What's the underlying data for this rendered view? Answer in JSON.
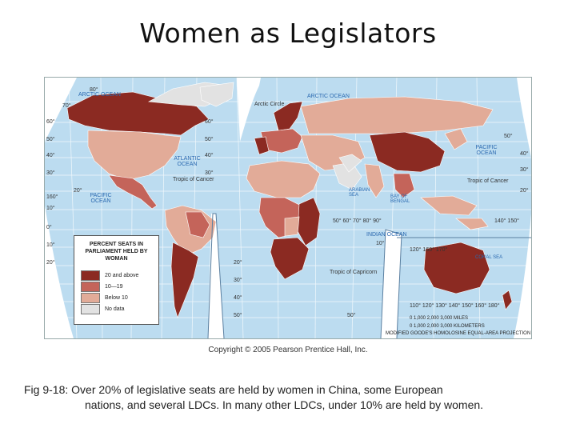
{
  "title": "Women as Legislators",
  "legend": {
    "heading": "PERCENT SEATS IN PARLIAMENT HELD BY WOMAN",
    "items": [
      {
        "label": "20 and above",
        "color": "#8b2a22"
      },
      {
        "label": "10—19",
        "color": "#c4645a"
      },
      {
        "label": "Below 10",
        "color": "#e2ab98"
      },
      {
        "label": "No data",
        "color": "#e2e2e2"
      }
    ]
  },
  "map_labels": {
    "arctic_ocean_left": "ARCTIC OCEAN",
    "arctic_ocean_right": "ARCTIC OCEAN",
    "arctic_circle": "Arctic Circle",
    "atlantic_ocean": "ATLANTIC OCEAN",
    "pacific_ocean_left": "PACIFIC OCEAN",
    "pacific_ocean_right": "PACIFIC OCEAN",
    "indian_ocean": "INDIAN OCEAN",
    "arabian_sea": "ARABIAN SEA",
    "bay_of_bengal": "BAY OF BENGAL",
    "coral_sea": "CORAL SEA",
    "tropic_cancer_left": "Tropic of Cancer",
    "tropic_cancer_right": "Tropic of Cancer",
    "tropic_capricorn": "Tropic of Capricorn",
    "lat_80": "80°",
    "lat_70": "70°",
    "lat_60": "60°",
    "lat_50": "50°",
    "lat_40": "40°",
    "lat_30": "30°",
    "lat_20": "20°",
    "lat_10": "10°",
    "lat_0": "0°",
    "lon_160": "160°",
    "lon_50_70_80_90": "50°   60°   70°   80°   90°",
    "lon_140_150": "140°   150°",
    "lon_120_160_170": "120°     160°  170°",
    "lon_bottom": "110° 120° 130° 140° 150° 160°  180°",
    "lat_10_right": "10°"
  },
  "scale": {
    "miles": "0        1,000        2,000        3,000 MILES",
    "km": "0   1,000  2,000  3,000 KILOMETERS",
    "projection": "MODIFIED GOODE'S HOMOLOSINE EQUAL-AREA PROJECTION"
  },
  "copyright": "Copyright © 2005 Pearson Prentice Hall, Inc.",
  "caption": {
    "line1": "Fig 9-18: Over 20% of legislative seats are held by women in China, some European",
    "line2": "nations, and several LDCs. In many other LDCs, under 10% are held by women."
  }
}
